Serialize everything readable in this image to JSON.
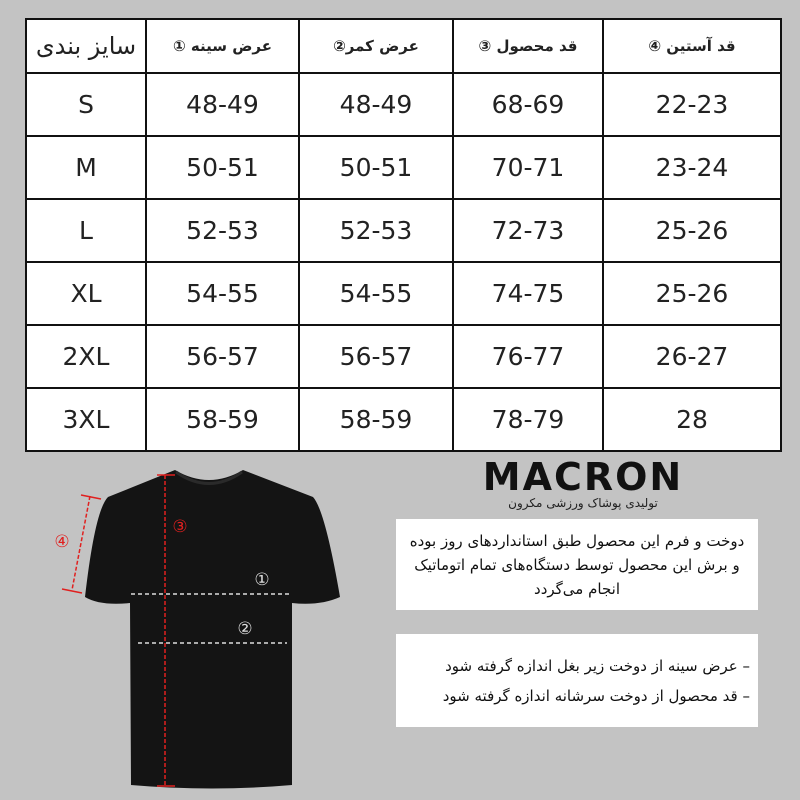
{
  "table": {
    "headers": [
      "سایز بندی",
      "عرض سینه ①",
      "عرض کمر②",
      "قد محصول ③",
      "قد آستین ④"
    ],
    "rows": [
      [
        "S",
        "48-49",
        "48-49",
        "68-69",
        "22-23"
      ],
      [
        "M",
        "50-51",
        "50-51",
        "70-71",
        "23-24"
      ],
      [
        "L",
        "52-53",
        "52-53",
        "72-73",
        "25-26"
      ],
      [
        "XL",
        "54-55",
        "54-55",
        "74-75",
        "25-26"
      ],
      [
        "2XL",
        "56-57",
        "56-57",
        "76-77",
        "26-27"
      ],
      [
        "3XL",
        "58-59",
        "58-59",
        "78-79",
        "28"
      ]
    ]
  },
  "logo": {
    "name": "MACRON",
    "subtitle": "تولیدی پوشاک ورزشی مکرون"
  },
  "diagram": {
    "markers": [
      "①",
      "②",
      "③",
      "④"
    ],
    "marker_color": "#e0201f",
    "shirt_color": "#141414"
  },
  "info_box": {
    "text": "دوخت و فرم این محصول طبق استانداردهای روز بوده و برش این محصول توسط دستگاه‌های تمام اتوماتیک انجام می‌گردد"
  },
  "notes": [
    "– عرض سینه از دوخت زیر بغل اندازه گرفته شود",
    "– قد محصول از دوخت سرشانه اندازه گرفته شود"
  ]
}
